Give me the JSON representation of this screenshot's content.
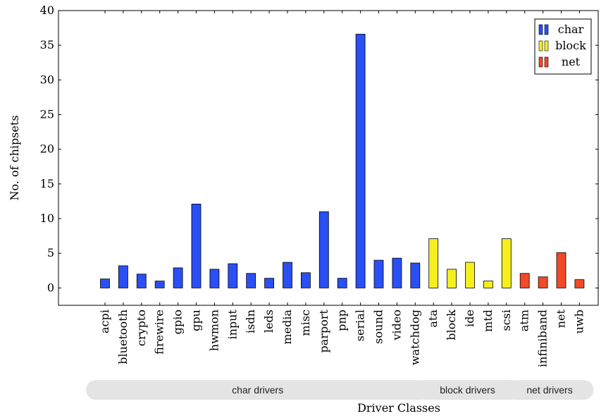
{
  "chart_data": {
    "type": "bar",
    "xlabel": "Driver Classes",
    "ylabel": "No. of chipsets",
    "ylim": [
      -2.5,
      40
    ],
    "yticks": [
      0,
      5,
      10,
      15,
      20,
      25,
      30,
      35,
      40
    ],
    "grid": false,
    "legend_position": "top-right",
    "categories": [
      "acpi",
      "bluetooth",
      "crypto",
      "firewire",
      "gpio",
      "gpu",
      "hwmon",
      "input",
      "isdn",
      "leds",
      "media",
      "misc",
      "parport",
      "pnp",
      "serial",
      "sound",
      "video",
      "watchdog",
      "ata",
      "block",
      "ide",
      "mtd",
      "scsi",
      "atm",
      "infiniband",
      "net",
      "uwb"
    ],
    "series": [
      {
        "name": "char",
        "color": "#2a4ff5",
        "values": [
          1.3,
          3.2,
          2.0,
          1.0,
          2.9,
          12.1,
          2.7,
          3.5,
          2.1,
          1.4,
          3.7,
          2.2,
          11.0,
          1.4,
          36.6,
          4.0,
          4.3,
          3.6,
          null,
          null,
          null,
          null,
          null,
          null,
          null,
          null,
          null
        ]
      },
      {
        "name": "block",
        "color": "#f5ef1e",
        "values": [
          null,
          null,
          null,
          null,
          null,
          null,
          null,
          null,
          null,
          null,
          null,
          null,
          null,
          null,
          null,
          null,
          null,
          null,
          7.1,
          2.7,
          3.7,
          1.0,
          7.1,
          null,
          null,
          null,
          null
        ]
      },
      {
        "name": "net",
        "color": "#f04a28",
        "values": [
          null,
          null,
          null,
          null,
          null,
          null,
          null,
          null,
          null,
          null,
          null,
          null,
          null,
          null,
          null,
          null,
          null,
          null,
          null,
          null,
          null,
          null,
          null,
          2.1,
          1.6,
          5.1,
          1.2
        ]
      }
    ],
    "groups": [
      {
        "label": "char drivers",
        "from": 0,
        "to": 17
      },
      {
        "label": "block drivers",
        "from": 18,
        "to": 22
      },
      {
        "label": "net drivers",
        "from": 23,
        "to": 26
      }
    ]
  }
}
